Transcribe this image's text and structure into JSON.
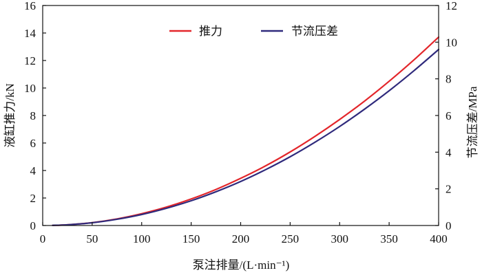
{
  "chart_data": {
    "type": "line",
    "x": [
      10,
      25,
      50,
      75,
      100,
      125,
      150,
      175,
      200,
      225,
      250,
      275,
      300,
      325,
      350,
      375,
      400
    ],
    "series": [
      {
        "name": "推力",
        "axis": "left",
        "color": "#e3262b",
        "values": [
          0.01,
          0.05,
          0.21,
          0.48,
          0.86,
          1.34,
          1.93,
          2.62,
          3.43,
          4.33,
          5.35,
          6.48,
          7.71,
          9.04,
          10.49,
          12.04,
          13.7
        ]
      },
      {
        "name": "节流压差",
        "axis": "right",
        "color": "#2f2a7c",
        "values": [
          0.01,
          0.04,
          0.15,
          0.34,
          0.6,
          0.94,
          1.35,
          1.84,
          2.4,
          3.04,
          3.75,
          4.54,
          5.4,
          6.34,
          7.35,
          8.44,
          9.6
        ]
      }
    ],
    "xlabel": "泵注排量/(L·min⁻¹)",
    "ylabel": "液缸推力/kN",
    "y2label": "节流压差/MPa",
    "xlim": [
      0,
      400
    ],
    "ylim": [
      0,
      16
    ],
    "y2lim": [
      0,
      12
    ],
    "xticks": [
      0,
      50,
      100,
      150,
      200,
      250,
      300,
      350,
      400
    ],
    "yticks": [
      0,
      2,
      4,
      6,
      8,
      10,
      12,
      14,
      16
    ],
    "y2ticks": [
      0,
      2,
      4,
      6,
      8,
      10,
      12
    ],
    "grid": false,
    "legend": "top-center"
  }
}
